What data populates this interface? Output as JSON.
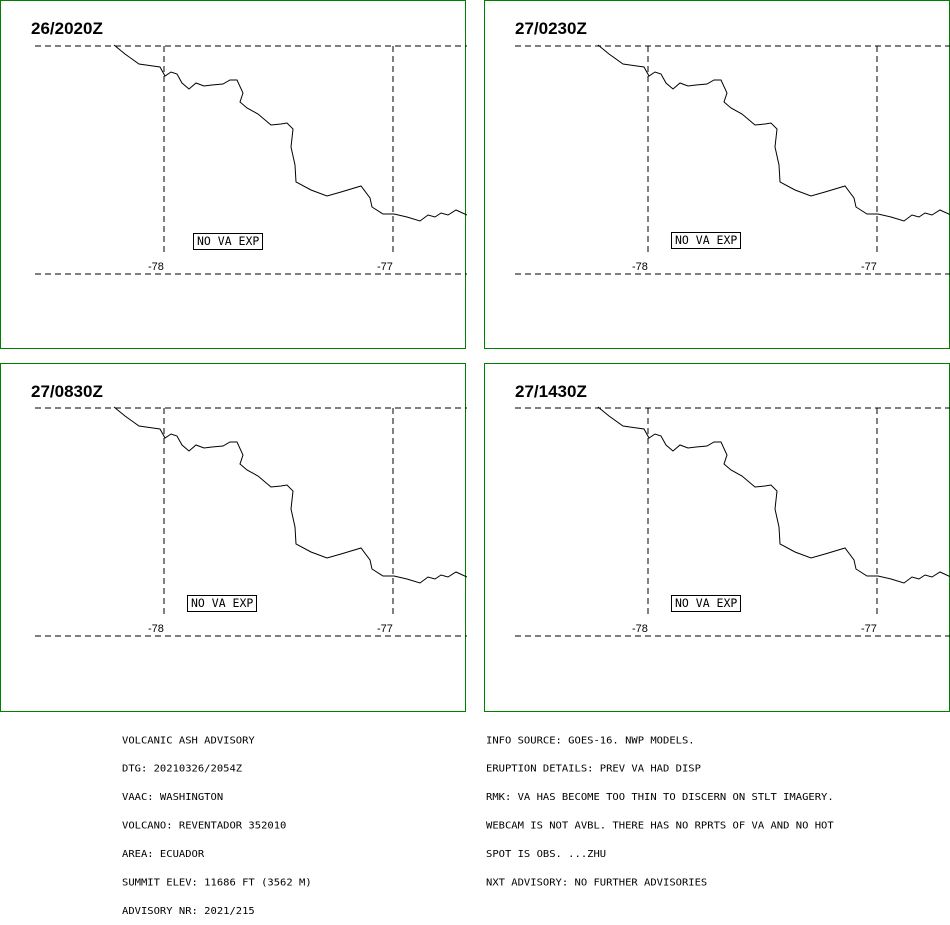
{
  "panels": [
    {
      "time": "26/2020Z",
      "note": "NO VA EXP",
      "lon_labels": [
        "-78",
        "-77"
      ]
    },
    {
      "time": "27/0230Z",
      "note": "NO VA EXP",
      "lon_labels": [
        "-78",
        "-77"
      ]
    },
    {
      "time": "27/0830Z",
      "note": "NO VA EXP",
      "lon_labels": [
        "-78",
        "-77"
      ]
    },
    {
      "time": "27/1430Z",
      "note": "NO VA EXP",
      "lon_labels": [
        "-78",
        "-77"
      ]
    }
  ],
  "advisory_left": [
    "VOLCANIC ASH ADVISORY",
    "DTG: 20210326/2054Z",
    "VAAC: WASHINGTON",
    "VOLCANO: REVENTADOR 352010",
    "AREA: ECUADOR",
    "SUMMIT ELEV: 11686 FT (3562 M)",
    "ADVISORY NR: 2021/215"
  ],
  "advisory_right": [
    "INFO SOURCE: GOES-16. NWP MODELS.",
    "ERUPTION DETAILS: PREV VA HAD DISP",
    "RMK: VA HAS BECOME TOO THIN TO DISCERN ON STLT IMAGERY.",
    "WEBCAM IS NOT AVBL. THERE HAS NO RPRTS OF VA AND NO HOT",
    "SPOT IS OBS. ...ZHU",
    "NXT ADVISORY: NO FURTHER ADVISORIES"
  ],
  "colors": {
    "panel_border": "#008000",
    "lines": "#000000",
    "background": "#ffffff"
  }
}
